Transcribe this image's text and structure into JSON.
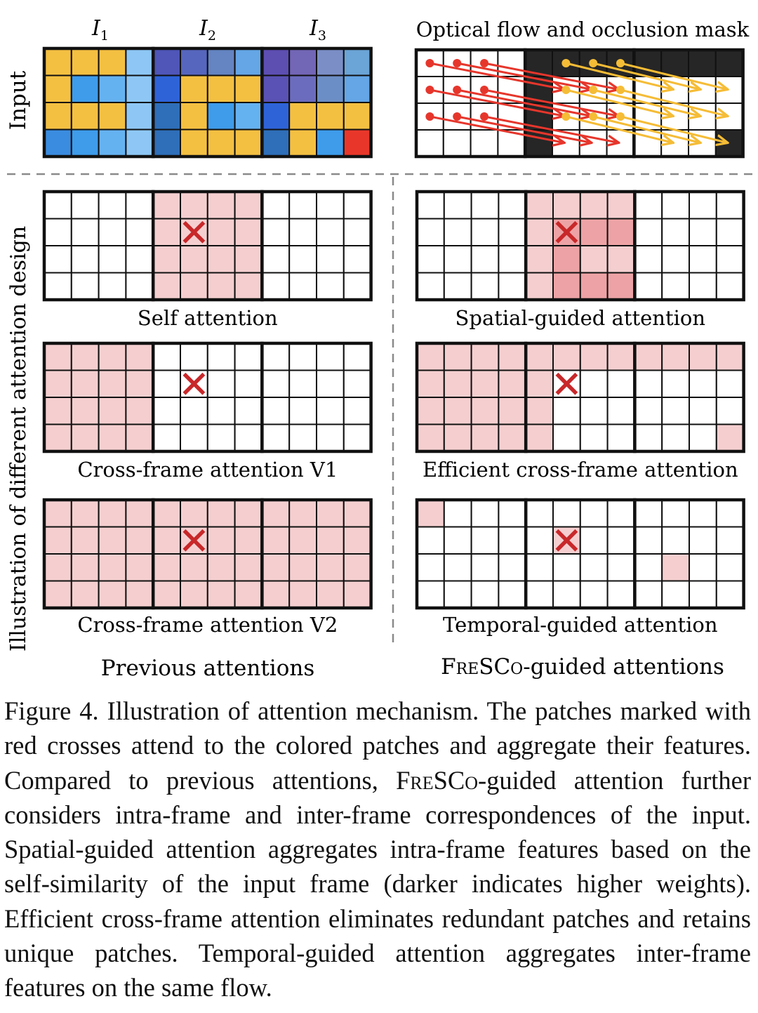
{
  "input_section": {
    "row_label": "Input",
    "frame_label_prefix": "I",
    "frame_subscripts": [
      "1",
      "2",
      "3"
    ],
    "flow_title": "Optical flow and occlusion mask",
    "frames": [
      [
        [
          "#F4C042",
          "#F4C042",
          "#F4C042",
          "#8EC7F5"
        ],
        [
          "#F4C042",
          "#3E9CEB",
          "#65B2F1",
          "#8EC7F5"
        ],
        [
          "#F4C042",
          "#F4C042",
          "#F4C042",
          "#8EC7F5"
        ],
        [
          "#3A8CE0",
          "#3E9CEB",
          "#65B2F1",
          "#8EC7F5"
        ]
      ],
      [
        [
          "#4F56B8",
          "#5666BE",
          "#6484C2",
          "#64A6E6"
        ],
        [
          "#2E63D8",
          "#F4C042",
          "#F4C042",
          "#F4C042"
        ],
        [
          "#2F6FB9",
          "#F4C042",
          "#3E9CEB",
          "#65B2F1"
        ],
        [
          "#2F6FB9",
          "#F4C042",
          "#F4C042",
          "#F4C042"
        ]
      ],
      [
        [
          "#5D4EB2",
          "#7266B6",
          "#7B8EC6",
          "#6BA4D6"
        ],
        [
          "#5A52B4",
          "#6C6CBE",
          "#6C8EC6",
          "#64A6E6"
        ],
        [
          "#2E63D8",
          "#F4C042",
          "#F4C042",
          "#F4C042"
        ],
        [
          "#2F6FB9",
          "#F4C042",
          "#3E9CEB",
          "#E8372A"
        ]
      ]
    ],
    "occlusion_mask": [
      [
        [
          0,
          0,
          0,
          0
        ],
        [
          0,
          0,
          0,
          0
        ],
        [
          0,
          0,
          0,
          0
        ],
        [
          0,
          0,
          0,
          0
        ]
      ],
      [
        [
          1,
          1,
          1,
          1
        ],
        [
          1,
          0,
          0,
          0
        ],
        [
          1,
          0,
          0,
          0
        ],
        [
          1,
          0,
          0,
          0
        ]
      ],
      [
        [
          1,
          1,
          1,
          1
        ],
        [
          0,
          0,
          0,
          0
        ],
        [
          0,
          0,
          0,
          0
        ],
        [
          0,
          0,
          0,
          1
        ]
      ]
    ]
  },
  "left_column_title": "Previous attentions",
  "right_column_title_parts": [
    "Fre",
    "SC",
    "o",
    "-guided attentions"
  ],
  "side_label": "Illustration of different attention design",
  "panels": [
    {
      "name": "self-attention",
      "label": "Self attention",
      "cross": [
        1,
        1,
        1
      ],
      "weights": [
        [
          [
            0,
            0,
            0,
            0
          ],
          [
            0,
            0,
            0,
            0
          ],
          [
            0,
            0,
            0,
            0
          ],
          [
            0,
            0,
            0,
            0
          ]
        ],
        [
          [
            1,
            1,
            1,
            1
          ],
          [
            1,
            1,
            1,
            1
          ],
          [
            1,
            1,
            1,
            1
          ],
          [
            1,
            1,
            1,
            1
          ]
        ],
        [
          [
            0,
            0,
            0,
            0
          ],
          [
            0,
            0,
            0,
            0
          ],
          [
            0,
            0,
            0,
            0
          ],
          [
            0,
            0,
            0,
            0
          ]
        ]
      ]
    },
    {
      "name": "spatial-guided-attention",
      "label": "Spatial-guided attention",
      "cross": [
        1,
        1,
        1
      ],
      "weights": [
        [
          [
            0,
            0,
            0,
            0
          ],
          [
            0,
            0,
            0,
            0
          ],
          [
            0,
            0,
            0,
            0
          ],
          [
            0,
            0,
            0,
            0
          ]
        ],
        [
          [
            1,
            1,
            1,
            1
          ],
          [
            1,
            3,
            3,
            3
          ],
          [
            1,
            3,
            1,
            1
          ],
          [
            1,
            3,
            3,
            3
          ]
        ],
        [
          [
            0,
            0,
            0,
            0
          ],
          [
            0,
            0,
            0,
            0
          ],
          [
            0,
            0,
            0,
            0
          ],
          [
            0,
            0,
            0,
            0
          ]
        ]
      ]
    },
    {
      "name": "cross-frame-attention-v1",
      "label": "Cross-frame attention V1",
      "cross": [
        1,
        1,
        1
      ],
      "weights": [
        [
          [
            1,
            1,
            1,
            1
          ],
          [
            1,
            1,
            1,
            1
          ],
          [
            1,
            1,
            1,
            1
          ],
          [
            1,
            1,
            1,
            1
          ]
        ],
        [
          [
            0,
            0,
            0,
            0
          ],
          [
            0,
            0,
            0,
            0
          ],
          [
            0,
            0,
            0,
            0
          ],
          [
            0,
            0,
            0,
            0
          ]
        ],
        [
          [
            0,
            0,
            0,
            0
          ],
          [
            0,
            0,
            0,
            0
          ],
          [
            0,
            0,
            0,
            0
          ],
          [
            0,
            0,
            0,
            0
          ]
        ]
      ]
    },
    {
      "name": "efficient-cross-frame-attention",
      "label": "Efficient cross-frame attention",
      "cross": [
        1,
        1,
        1
      ],
      "weights": [
        [
          [
            1,
            1,
            1,
            1
          ],
          [
            1,
            1,
            1,
            1
          ],
          [
            1,
            1,
            1,
            1
          ],
          [
            1,
            1,
            1,
            1
          ]
        ],
        [
          [
            1,
            1,
            1,
            1
          ],
          [
            1,
            0,
            0,
            0
          ],
          [
            1,
            0,
            0,
            0
          ],
          [
            1,
            0,
            0,
            0
          ]
        ],
        [
          [
            1,
            1,
            1,
            1
          ],
          [
            0,
            0,
            0,
            0
          ],
          [
            0,
            0,
            0,
            0
          ],
          [
            0,
            0,
            0,
            1
          ]
        ]
      ]
    },
    {
      "name": "cross-frame-attention-v2",
      "label": "Cross-frame attention V2",
      "cross": [
        1,
        1,
        1
      ],
      "weights": [
        [
          [
            1,
            1,
            1,
            1
          ],
          [
            1,
            1,
            1,
            1
          ],
          [
            1,
            1,
            1,
            1
          ],
          [
            1,
            1,
            1,
            1
          ]
        ],
        [
          [
            1,
            1,
            1,
            1
          ],
          [
            1,
            1,
            1,
            1
          ],
          [
            1,
            1,
            1,
            1
          ],
          [
            1,
            1,
            1,
            1
          ]
        ],
        [
          [
            1,
            1,
            1,
            1
          ],
          [
            1,
            1,
            1,
            1
          ],
          [
            1,
            1,
            1,
            1
          ],
          [
            1,
            1,
            1,
            1
          ]
        ]
      ]
    },
    {
      "name": "temporal-guided-attention",
      "label": "Temporal-guided attention",
      "cross": [
        1,
        1,
        1
      ],
      "weights": [
        [
          [
            1,
            0,
            0,
            0
          ],
          [
            0,
            0,
            0,
            0
          ],
          [
            0,
            0,
            0,
            0
          ],
          [
            0,
            0,
            0,
            0
          ]
        ],
        [
          [
            0,
            0,
            0,
            0
          ],
          [
            0,
            1,
            0,
            0
          ],
          [
            0,
            0,
            0,
            0
          ],
          [
            0,
            0,
            0,
            0
          ]
        ],
        [
          [
            0,
            0,
            0,
            0
          ],
          [
            0,
            0,
            0,
            0
          ],
          [
            0,
            1,
            0,
            0
          ],
          [
            0,
            0,
            0,
            0
          ]
        ]
      ]
    }
  ],
  "weight_colors": [
    "#FFFFFF",
    "#F5CFD0",
    "#F9E3E3",
    "#EDA3A5"
  ],
  "flow_colors": {
    "red": "#E6362C",
    "yellow": "#F5BC36",
    "occluded": "#262626"
  },
  "cross_color": "#C8282A",
  "caption": {
    "prefix": "Figure 4. Illustration of attention mechanism. The patches marked with red crosses attend to the colored patches and aggregate their features. Compared to previous attentions, ",
    "brand_parts": [
      "Fre",
      "SC",
      "o"
    ],
    "middle": "-guided attention further considers intra-frame and inter-frame correspondences of the input. Spatial-guided attention aggregates intra-frame features based on the self-similarity of the input frame (darker indicates higher weights). Efficient cross-frame attention eliminates redundant patches and retains unique patches. Temporal-guided attention aggregates inter-frame features on the same flow."
  }
}
